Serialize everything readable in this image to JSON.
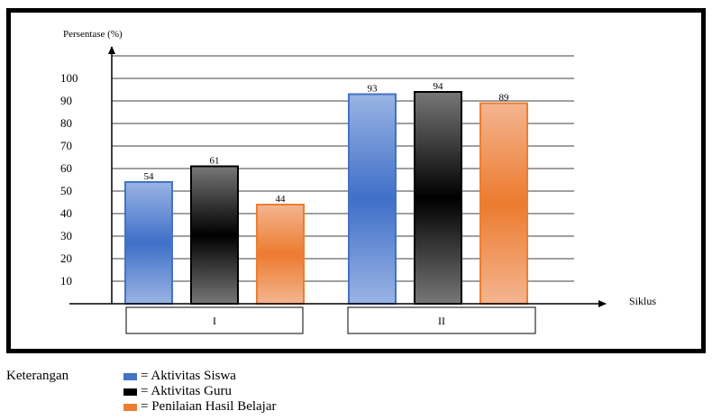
{
  "chart_data": {
    "type": "bar",
    "ylabel": "Persentase (%)",
    "xlabel": "Siklus",
    "categories": [
      "I",
      "II"
    ],
    "yticks": [
      10,
      20,
      30,
      40,
      50,
      60,
      70,
      80,
      90,
      100
    ],
    "ylim": [
      0,
      110
    ],
    "grid": true,
    "series": [
      {
        "name": "Aktivitas Siswa",
        "color": "#4472c4",
        "values": [
          54,
          93
        ],
        "labels": [
          "54",
          "93"
        ]
      },
      {
        "name": "Aktivitas Guru",
        "color": "#000000",
        "values": [
          61,
          94
        ],
        "labels": [
          "61",
          "94"
        ]
      },
      {
        "name": "Penilaian Hasil Belajar",
        "color": "#ed7d31",
        "values": [
          44,
          89
        ],
        "labels": [
          "44",
          "89"
        ]
      }
    ]
  },
  "legend": {
    "title": "Keterangan",
    "items": [
      {
        "text": "= Aktivitas Siswa",
        "color": "#4472c4"
      },
      {
        "text": "= Aktivitas Guru",
        "color": "#000000"
      },
      {
        "text": "= Penilaian Hasil Belajar",
        "color": "#ed7d31"
      }
    ]
  }
}
